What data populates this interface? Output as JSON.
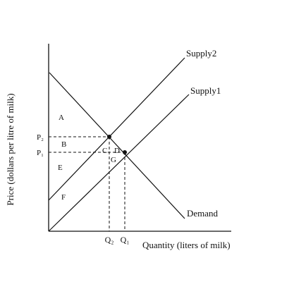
{
  "axes": {
    "x_title": "Quantity (liters of milk)",
    "y_title": "Price (dollars per litre of milk)"
  },
  "curves": {
    "supply2": "Supply2",
    "supply1": "Supply1",
    "demand": "Demand"
  },
  "ticks": {
    "p2": "P₂",
    "p1": "P₁",
    "q2": "Q₂",
    "q1": "Q₁"
  },
  "areas": {
    "a": "A",
    "b": "B",
    "c": "C",
    "d": "D",
    "e": "E",
    "f": "F",
    "g": "G"
  },
  "style": {
    "line_color": "#111111",
    "background": "#ffffff"
  }
}
